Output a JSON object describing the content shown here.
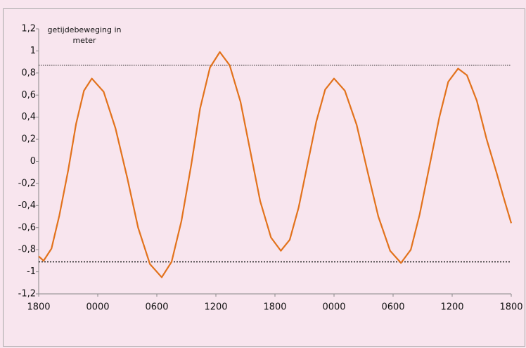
{
  "chart_data": {
    "type": "line",
    "title": [
      "getijdebeweging in",
      "meter"
    ],
    "x": [
      0,
      0.5,
      1.3,
      2.1,
      3.0,
      3.8,
      4.6,
      5.4,
      6.6,
      7.8,
      9.0,
      10.1,
      11.3,
      12.5,
      13.5,
      14.5,
      15.5,
      16.4,
      17.4,
      18.4,
      19.4,
      20.5,
      21.5,
      22.5,
      23.6,
      24.6,
      25.5,
      26.4,
      27.3,
      28.2,
      29.1,
      30.0,
      31.1,
      32.3,
      33.4,
      34.5,
      35.7,
      36.8,
      37.8,
      38.7,
      39.7,
      40.7,
      41.6,
      42.6,
      43.5,
      44.5,
      45.5,
      46.5,
      47.3,
      48.0
    ],
    "series": [
      {
        "color": "#e2721c",
        "values": [
          -0.86,
          -0.9,
          -0.79,
          -0.49,
          -0.08,
          0.34,
          0.64,
          0.75,
          0.63,
          0.3,
          -0.15,
          -0.6,
          -0.93,
          -1.05,
          -0.91,
          -0.54,
          -0.03,
          0.48,
          0.85,
          0.99,
          0.87,
          0.54,
          0.09,
          -0.36,
          -0.69,
          -0.81,
          -0.71,
          -0.42,
          -0.03,
          0.36,
          0.65,
          0.75,
          0.64,
          0.33,
          -0.09,
          -0.5,
          -0.81,
          -0.92,
          -0.8,
          -0.48,
          -0.04,
          0.4,
          0.72,
          0.84,
          0.78,
          0.55,
          0.2,
          -0.1,
          -0.35,
          -0.56
        ]
      }
    ],
    "reference_lines": [
      0.87,
      -0.91
    ],
    "xlim": [
      0,
      48
    ],
    "xticks": [
      {
        "value": 0,
        "label": "1800"
      },
      {
        "value": 6,
        "label": "0000"
      },
      {
        "value": 12,
        "label": "0600"
      },
      {
        "value": 18,
        "label": "1200"
      },
      {
        "value": 24,
        "label": "1800"
      },
      {
        "value": 30,
        "label": "0000"
      },
      {
        "value": 36,
        "label": "0600"
      },
      {
        "value": 42,
        "label": "1200"
      },
      {
        "value": 48,
        "label": "1800"
      }
    ],
    "ylim": [
      -1.2,
      1.2
    ],
    "yticks": [
      {
        "value": 1.2,
        "label": "1,2"
      },
      1,
      {
        "value": 0.8,
        "label": "0,8"
      },
      {
        "value": 0.6,
        "label": "0,6"
      },
      {
        "value": 0.4,
        "label": "0,4"
      },
      {
        "value": 0.2,
        "label": "0,2"
      },
      0,
      {
        "value": -0.2,
        "label": "-0,2"
      },
      {
        "value": -0.4,
        "label": "-0,4"
      },
      {
        "value": -0.6,
        "label": "-0,6"
      },
      {
        "value": -0.8,
        "label": "-0,8"
      },
      -1,
      {
        "value": -1.2,
        "label": "-1,2"
      }
    ],
    "grid": false
  }
}
